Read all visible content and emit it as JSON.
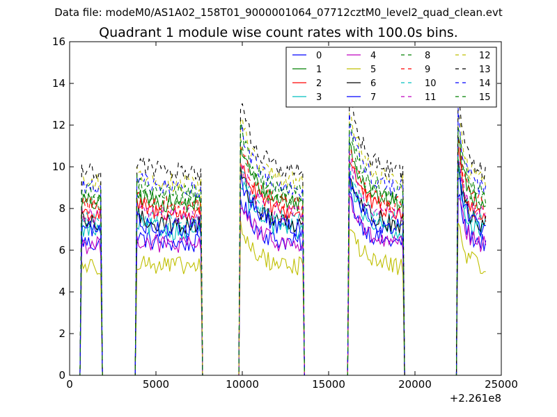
{
  "chart_data": {
    "type": "line",
    "suptitle": "Data file: modeM0/AS1A02_158T01_9000001064_07712cztM0_level2_quad_clean.evt",
    "title": "Quadrant 1 module wise count rates with 100.0s bins.",
    "xlabel": "",
    "ylabel": "",
    "x_offset_label": "+2.261e8",
    "xlim": [
      0,
      25000
    ],
    "ylim": [
      0,
      16
    ],
    "xticks": [
      0,
      5000,
      10000,
      15000,
      20000,
      25000
    ],
    "xtick_labels": [
      "0",
      "5000",
      "10000",
      "15000",
      "20000",
      "25000"
    ],
    "yticks": [
      0,
      2,
      4,
      6,
      8,
      10,
      12,
      14,
      16
    ],
    "ytick_labels": [
      "0",
      "2",
      "4",
      "6",
      "8",
      "10",
      "12",
      "14",
      "16"
    ],
    "grid": false,
    "legend_position": "top-right",
    "segments": [
      {
        "start": 700,
        "end": 1800,
        "peak_factor": 0.03
      },
      {
        "start": 3900,
        "end": 7600,
        "peak_factor": 0.06
      },
      {
        "start": 9900,
        "end": 13500,
        "peak_factor": 0.35
      },
      {
        "start": 16200,
        "end": 19300,
        "peak_factor": 0.38
      },
      {
        "start": 22500,
        "end": 24100,
        "peak_factor": 0.4
      }
    ],
    "series": [
      {
        "name": "0",
        "color": "#0000ff",
        "dash": "solid",
        "base_rate": 6.3
      },
      {
        "name": "1",
        "color": "#008000",
        "dash": "solid",
        "base_rate": 8.2
      },
      {
        "name": "2",
        "color": "#ff0000",
        "dash": "solid",
        "base_rate": 7.7
      },
      {
        "name": "3",
        "color": "#00bfbf",
        "dash": "solid",
        "base_rate": 6.9
      },
      {
        "name": "4",
        "color": "#bf00bf",
        "dash": "solid",
        "base_rate": 6.2
      },
      {
        "name": "5",
        "color": "#bfbf00",
        "dash": "solid",
        "base_rate": 5.2
      },
      {
        "name": "6",
        "color": "#000000",
        "dash": "solid",
        "base_rate": 7.2
      },
      {
        "name": "7",
        "color": "#0000ff",
        "dash": "solid",
        "base_rate": 7.0
      },
      {
        "name": "8",
        "color": "#008000",
        "dash": "dashed",
        "base_rate": 8.3
      },
      {
        "name": "9",
        "color": "#ff0000",
        "dash": "dashed",
        "base_rate": 8.1
      },
      {
        "name": "10",
        "color": "#00bfbf",
        "dash": "dashed",
        "base_rate": 7.3
      },
      {
        "name": "11",
        "color": "#bf00bf",
        "dash": "dashed",
        "base_rate": 7.6
      },
      {
        "name": "12",
        "color": "#bfbf00",
        "dash": "dashed",
        "base_rate": 9.2
      },
      {
        "name": "13",
        "color": "#000000",
        "dash": "dashed",
        "base_rate": 9.7
      },
      {
        "name": "14",
        "color": "#0000ff",
        "dash": "dashed",
        "base_rate": 8.9
      },
      {
        "name": "15",
        "color": "#008000",
        "dash": "dashed",
        "base_rate": 8.7
      }
    ]
  }
}
